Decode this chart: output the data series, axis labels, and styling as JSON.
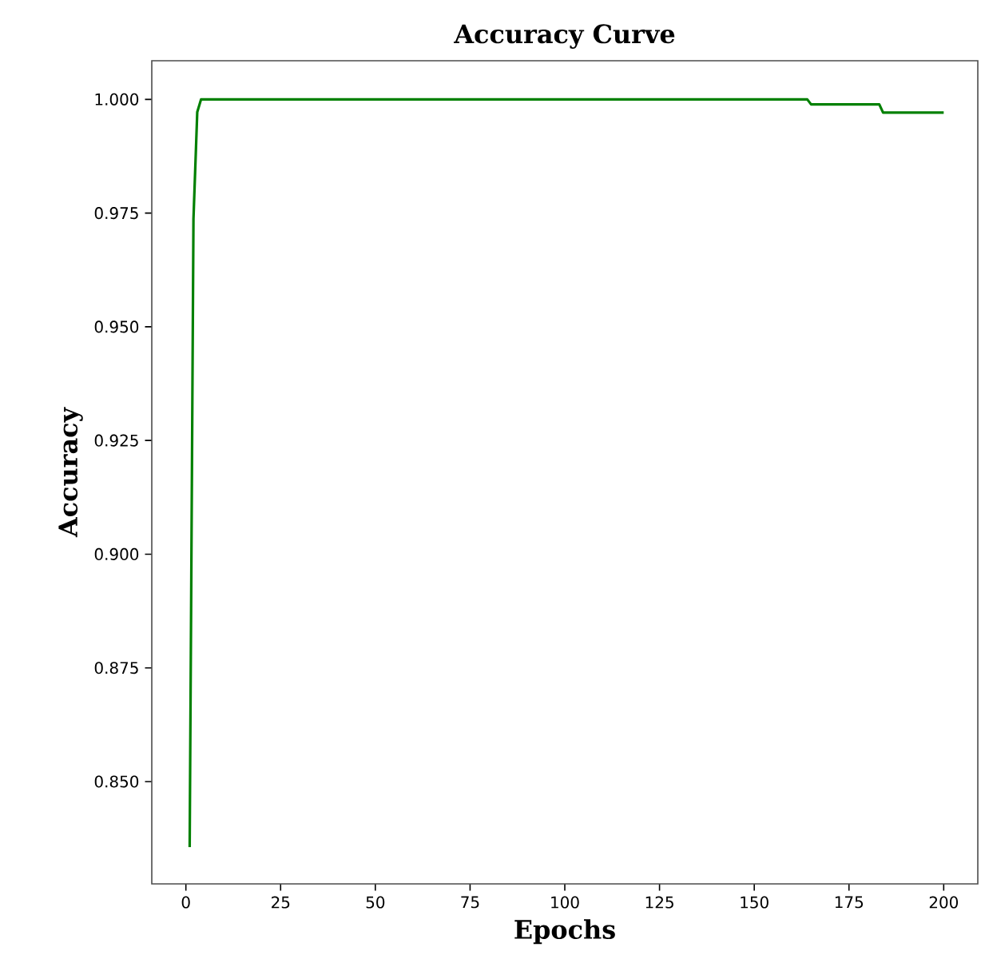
{
  "chart_data": {
    "type": "line",
    "title": "Accuracy Curve",
    "xlabel": "Epochs",
    "ylabel": "Accuracy",
    "x": [
      1,
      2,
      3,
      4,
      164,
      165,
      183,
      184,
      200
    ],
    "series": [
      {
        "color": "#008000",
        "values": [
          0.8356,
          0.9737,
          0.9972,
          1.0,
          1.0,
          0.9989,
          0.9989,
          0.9971,
          0.9971
        ]
      }
    ],
    "xlim": [
      -9,
      209
    ],
    "ylim": [
      0.8275,
      1.0085
    ],
    "xticks": [
      0,
      25,
      50,
      75,
      100,
      125,
      150,
      175,
      200
    ],
    "yticks": [
      {
        "value": 0.85,
        "label": "0.850"
      },
      {
        "value": 0.875,
        "label": "0.875"
      },
      {
        "value": 0.9,
        "label": "0.900"
      },
      {
        "value": 0.925,
        "label": "0.925"
      },
      {
        "value": 0.95,
        "label": "0.950"
      },
      {
        "value": 0.975,
        "label": "0.975"
      },
      {
        "value": 1.0,
        "label": "1.000"
      }
    ],
    "marker": "none",
    "line_style": "solid"
  }
}
